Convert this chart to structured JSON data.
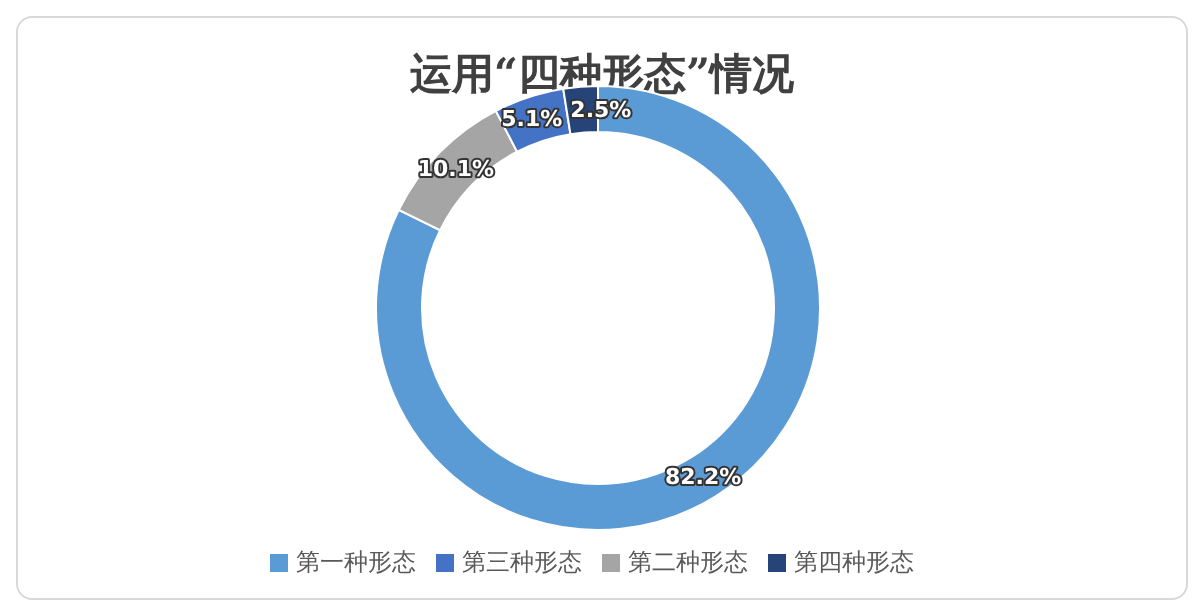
{
  "chart_data": {
    "type": "donut",
    "title": "运用“四种形态”情况",
    "categories": [
      "第一种形态",
      "第二种形态",
      "第三种形态",
      "第四种形态"
    ],
    "values": [
      82.2,
      10.1,
      5.1,
      2.5
    ],
    "colors": [
      "#5b9bd5",
      "#a5a5a5",
      "#4472c4",
      "#264478"
    ],
    "value_labels": [
      "82.2%",
      "10.1%",
      "5.1%",
      "2.5%"
    ],
    "legend": "bottom"
  }
}
